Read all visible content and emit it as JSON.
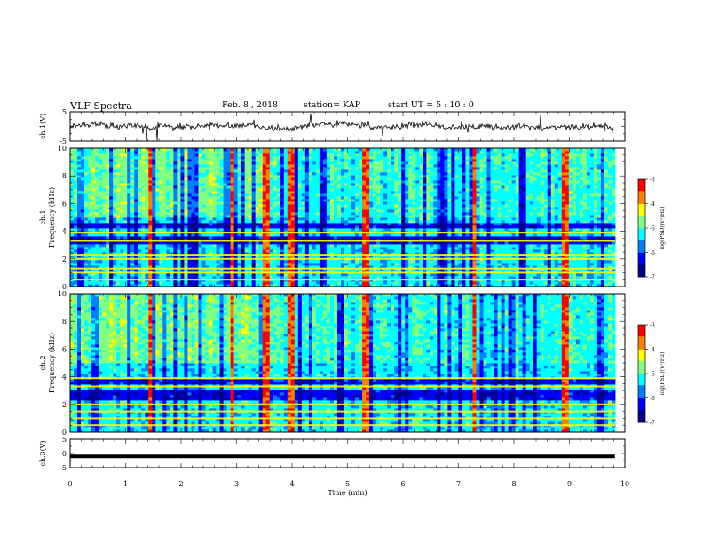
{
  "header": {
    "title": "VLF Spectra",
    "date": "Feb. 8 , 2018",
    "station": "station= KAP",
    "start": "start UT =  5 : 10 : 0"
  },
  "chart_data": [
    {
      "type": "line",
      "ylabel": "ch.1(V)",
      "ylim": [
        -5,
        5
      ],
      "yticks": [
        "5",
        "-5"
      ],
      "xlim": [
        0,
        10
      ],
      "description": "noisy waveform near 0 V with occasional spikes"
    },
    {
      "type": "heatmap",
      "ylabel": "ch.1",
      "ylabel2": "Frequency (kHz)",
      "ylim": [
        0,
        10
      ],
      "yticks": [
        "0",
        "2",
        "4",
        "6",
        "8",
        "10"
      ],
      "xlim": [
        0,
        10
      ],
      "colorbar": {
        "label": "log(PSD)(V²/Hz)",
        "ticks": [
          "-3",
          "-4",
          "-5",
          "-6",
          "-7"
        ],
        "range": [
          -7,
          -3
        ]
      },
      "bright_lines_khz": [
        0.5,
        1.0,
        1.3,
        2.0,
        2.3,
        3.3,
        3.9
      ],
      "dark_bands_khz": [
        [
          3.0,
          3.6
        ],
        [
          4.2,
          4.6
        ]
      ],
      "impulse_times_min": [
        1.4,
        2.9,
        3.5,
        3.95,
        5.3,
        7.25,
        8.9
      ]
    },
    {
      "type": "heatmap",
      "ylabel": "ch.2",
      "ylabel2": "Frequency (kHz)",
      "ylim": [
        0,
        10
      ],
      "yticks": [
        "0",
        "2",
        "4",
        "6",
        "8",
        "10"
      ],
      "xlim": [
        0,
        10
      ],
      "colorbar": {
        "label": "log(PSD)(V²/Hz)",
        "ticks": [
          "-3",
          "-4",
          "-5",
          "-6",
          "-7"
        ],
        "range": [
          -7,
          -3
        ]
      },
      "bright_lines_khz": [
        0.5,
        1.0,
        1.5,
        2.0,
        3.3,
        3.9
      ],
      "dark_bands_khz": [
        [
          2.4,
          3.1
        ],
        [
          3.4,
          3.8
        ]
      ],
      "impulse_times_min": [
        1.4,
        2.9,
        3.5,
        3.95,
        5.3,
        7.25,
        8.9
      ]
    },
    {
      "type": "line",
      "ylabel": "ch.3(V)",
      "ylim": [
        -5,
        5
      ],
      "yticks": [
        "5",
        "0",
        "-5"
      ],
      "xlim": [
        0,
        10
      ],
      "values": [
        -1,
        -1
      ],
      "x": [
        0,
        9.82
      ]
    }
  ],
  "xaxis": {
    "label": "Time (min)",
    "ticks": [
      "0",
      "1",
      "2",
      "3",
      "4",
      "5",
      "6",
      "7",
      "8",
      "9",
      "10"
    ]
  },
  "colors": {
    "colormap": [
      "#00008f",
      "#0000ff",
      "#0080ff",
      "#00ffff",
      "#80ff80",
      "#ffff00",
      "#ff8000",
      "#ff0000",
      "#800000"
    ]
  }
}
